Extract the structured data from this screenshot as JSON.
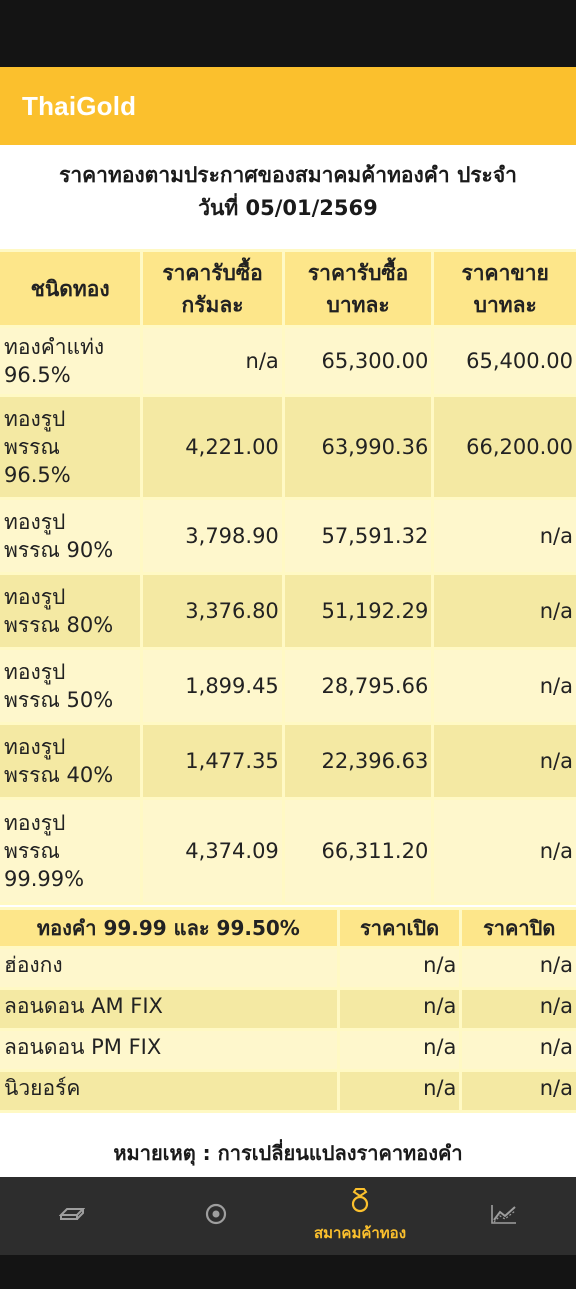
{
  "app": {
    "title": "ThaiGold"
  },
  "heading": {
    "line1": "ราคาทองตามประกาศของสมาคมค้าทองคำ ประจำ",
    "line2": "วันที่ 05/01/2569"
  },
  "price_table": {
    "headers": [
      "ชนิดทอง",
      "ราคารับซื้อ\nกรัมละ",
      "ราคารับซื้อ\nบาทละ",
      "ราคาขาย\nบาทละ"
    ],
    "rows": [
      {
        "name": "ทองคำแท่ง\n96.5%",
        "buy_gram": "n/a",
        "buy_baht": "65,300.00",
        "sell_baht": "65,400.00"
      },
      {
        "name": "ทองรูป\nพรรณ\n96.5%",
        "buy_gram": "4,221.00",
        "buy_baht": "63,990.36",
        "sell_baht": "66,200.00"
      },
      {
        "name": "ทองรูป\nพรรณ 90%",
        "buy_gram": "3,798.90",
        "buy_baht": "57,591.32",
        "sell_baht": "n/a"
      },
      {
        "name": "ทองรูป\nพรรณ 80%",
        "buy_gram": "3,376.80",
        "buy_baht": "51,192.29",
        "sell_baht": "n/a"
      },
      {
        "name": "ทองรูป\nพรรณ 50%",
        "buy_gram": "1,899.45",
        "buy_baht": "28,795.66",
        "sell_baht": "n/a"
      },
      {
        "name": "ทองรูป\nพรรณ 40%",
        "buy_gram": "1,477.35",
        "buy_baht": "22,396.63",
        "sell_baht": "n/a"
      },
      {
        "name": "ทองรูป\nพรรณ\n99.99%",
        "buy_gram": "4,374.09",
        "buy_baht": "66,311.20",
        "sell_baht": "n/a"
      }
    ]
  },
  "intl_table": {
    "headers": [
      "ทองคำ 99.99 และ 99.50%",
      "ราคาเปิด",
      "ราคาปิด"
    ],
    "rows": [
      {
        "market": "ฮ่องกง",
        "open": "n/a",
        "close": "n/a"
      },
      {
        "market": "ลอนดอน AM FIX",
        "open": "n/a",
        "close": "n/a"
      },
      {
        "market": "ลอนดอน PM FIX",
        "open": "n/a",
        "close": "n/a"
      },
      {
        "market": "นิวยอร์ค",
        "open": "n/a",
        "close": "n/a"
      }
    ]
  },
  "note": "หมายเหตุ : การเปลี่ยนแปลงราคาทองคำ",
  "bottom_nav": {
    "items": [
      {
        "icon": "gold-bar-icon",
        "label": ""
      },
      {
        "icon": "target-icon",
        "label": ""
      },
      {
        "icon": "ring-icon",
        "label": "สมาคมค้าทอง",
        "active": true
      },
      {
        "icon": "chart-line-icon",
        "label": ""
      }
    ],
    "active_color": "#fbc02d",
    "inactive_color": "#9e9e9e"
  },
  "colors": {
    "app_bar": "#fbc02d",
    "header_cell": "#fde68a",
    "row_light": "#fef7cc",
    "row_dark": "#f4e9a3"
  }
}
